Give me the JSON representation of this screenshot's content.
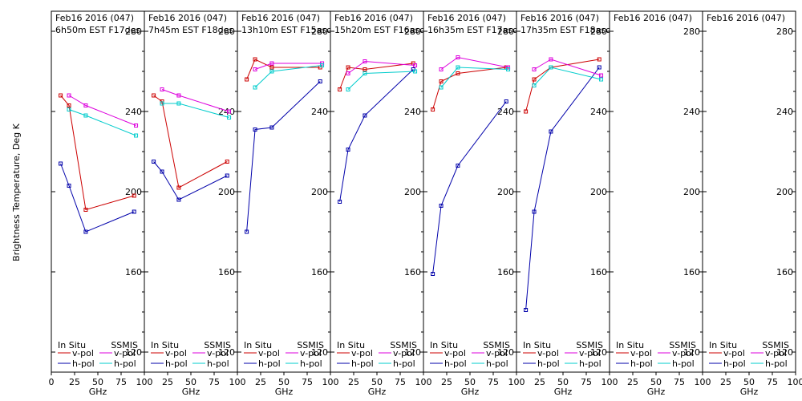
{
  "ylabel": "Brightness Temperature, Deg K",
  "xlabel": "GHz",
  "colors": {
    "insitu_v": "#cc0000",
    "insitu_h": "#0000aa",
    "ssmis_v": "#dd00dd",
    "ssmis_h": "#00cccc"
  },
  "legend": {
    "insitu_header": "In Situ",
    "ssmis_header": "SSMIS",
    "vpol": "v-pol",
    "hpol": "h-pol"
  },
  "chart_data": {
    "type": "line",
    "ylim": [
      110,
      290
    ],
    "xlim": [
      0,
      100
    ],
    "yticks": [
      120,
      160,
      200,
      240,
      280
    ],
    "xticks": [
      0,
      25,
      50,
      75,
      100
    ],
    "legend_position": "bottom",
    "panels": [
      {
        "title": "Feb16 2016 (047)",
        "subtitle": "6h50m EST F17des",
        "series": [
          {
            "name": "In Situ v-pol",
            "x": [
              10,
              19,
              37,
              89
            ],
            "y": [
              248,
              243,
              191,
              198
            ]
          },
          {
            "name": "In Situ h-pol",
            "x": [
              10,
              19,
              37,
              89
            ],
            "y": [
              214,
              203,
              180,
              190
            ]
          },
          {
            "name": "SSMIS v-pol",
            "x": [
              19,
              37,
              91
            ],
            "y": [
              248,
              243,
              233
            ]
          },
          {
            "name": "SSMIS h-pol",
            "x": [
              19,
              37,
              91
            ],
            "y": [
              241,
              238,
              228
            ]
          }
        ]
      },
      {
        "title": "Feb16 2016 (047)",
        "subtitle": "7h45m EST F18des",
        "series": [
          {
            "name": "In Situ v-pol",
            "x": [
              10,
              19,
              37,
              89
            ],
            "y": [
              248,
              245,
              202,
              215
            ]
          },
          {
            "name": "In Situ h-pol",
            "x": [
              10,
              19,
              37,
              89
            ],
            "y": [
              215,
              210,
              196,
              208
            ]
          },
          {
            "name": "SSMIS v-pol",
            "x": [
              19,
              37,
              91
            ],
            "y": [
              251,
              248,
              240
            ]
          },
          {
            "name": "SSMIS h-pol",
            "x": [
              19,
              37,
              91
            ],
            "y": [
              244,
              244,
              237
            ]
          }
        ]
      },
      {
        "title": "Feb16 2016 (047)",
        "subtitle": "13h10m EST F15asc",
        "series": [
          {
            "name": "In Situ v-pol",
            "x": [
              10,
              19,
              37,
              89
            ],
            "y": [
              256,
              266,
              262,
              262
            ]
          },
          {
            "name": "In Situ h-pol",
            "x": [
              10,
              19,
              37,
              89
            ],
            "y": [
              180,
              231,
              232,
              255
            ]
          },
          {
            "name": "SSMIS v-pol",
            "x": [
              19,
              37,
              91
            ],
            "y": [
              261,
              264,
              264
            ]
          },
          {
            "name": "SSMIS h-pol",
            "x": [
              19,
              37,
              91
            ],
            "y": [
              252,
              260,
              263
            ]
          }
        ]
      },
      {
        "title": "Feb16 2016 (047)",
        "subtitle": "15h20m EST F16asc",
        "series": [
          {
            "name": "In Situ v-pol",
            "x": [
              10,
              19,
              37,
              89
            ],
            "y": [
              251,
              262,
              261,
              264
            ]
          },
          {
            "name": "In Situ h-pol",
            "x": [
              10,
              19,
              37,
              89
            ],
            "y": [
              195,
              221,
              238,
              261
            ]
          },
          {
            "name": "SSMIS v-pol",
            "x": [
              19,
              37,
              91
            ],
            "y": [
              259,
              265,
              263
            ]
          },
          {
            "name": "SSMIS h-pol",
            "x": [
              19,
              37,
              91
            ],
            "y": [
              251,
              259,
              260
            ]
          }
        ]
      },
      {
        "title": "Feb16 2016 (047)",
        "subtitle": "16h35m EST F17asc",
        "series": [
          {
            "name": "In Situ v-pol",
            "x": [
              10,
              19,
              37,
              89
            ],
            "y": [
              241,
              255,
              259,
              262
            ]
          },
          {
            "name": "In Situ h-pol",
            "x": [
              10,
              19,
              37,
              89
            ],
            "y": [
              159,
              193,
              213,
              245
            ]
          },
          {
            "name": "SSMIS v-pol",
            "x": [
              19,
              37,
              91
            ],
            "y": [
              261,
              267,
              262
            ]
          },
          {
            "name": "SSMIS h-pol",
            "x": [
              19,
              37,
              91
            ],
            "y": [
              252,
              262,
              261
            ]
          }
        ]
      },
      {
        "title": "Feb16 2016 (047)",
        "subtitle": "17h35m EST F18asc",
        "series": [
          {
            "name": "In Situ v-pol",
            "x": [
              10,
              19,
              37,
              89
            ],
            "y": [
              240,
              256,
              262,
              266
            ]
          },
          {
            "name": "In Situ h-pol",
            "x": [
              10,
              19,
              37,
              89
            ],
            "y": [
              141,
              190,
              230,
              262
            ]
          },
          {
            "name": "SSMIS v-pol",
            "x": [
              19,
              37,
              91
            ],
            "y": [
              261,
              266,
              258
            ]
          },
          {
            "name": "SSMIS h-pol",
            "x": [
              19,
              37,
              91
            ],
            "y": [
              253,
              262,
              256
            ]
          }
        ]
      },
      {
        "title": "Feb16 2016 (047)",
        "subtitle": "",
        "series": []
      },
      {
        "title": "Feb16 2016 (047)",
        "subtitle": "",
        "series": []
      }
    ]
  }
}
